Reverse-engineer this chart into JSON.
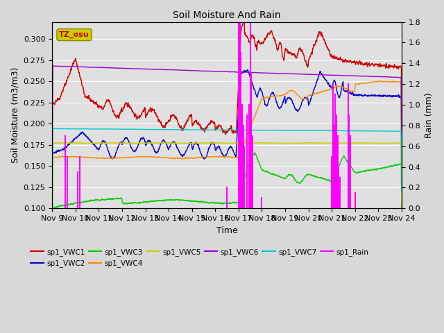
{
  "title": "Soil Moisture And Rain",
  "xlabel": "Time",
  "ylabel_left": "Soil Moisture (m3/m3)",
  "ylabel_right": "Rain (mm)",
  "ylim_left": [
    0.1,
    0.32
  ],
  "ylim_right": [
    0.0,
    1.8
  ],
  "colors": {
    "VWC1": "#cc0000",
    "VWC2": "#0000cc",
    "VWC3": "#00cc00",
    "VWC4": "#ff8800",
    "VWC5": "#cccc00",
    "VWC6": "#9900cc",
    "VWC7": "#00cccc",
    "Rain": "#ff00ff"
  },
  "annotation": "TZ_osu",
  "annotation_color": "#cc0000",
  "annotation_bg": "#cccc00",
  "bg_color": "#e0e0e0",
  "grid_color": "#ffffff",
  "legend_labels": [
    "sp1_VWC1",
    "sp1_VWC2",
    "sp1_VWC3",
    "sp1_VWC4",
    "sp1_VWC5",
    "sp1_VWC6",
    "sp1_VWC7",
    "sp1_Rain"
  ]
}
